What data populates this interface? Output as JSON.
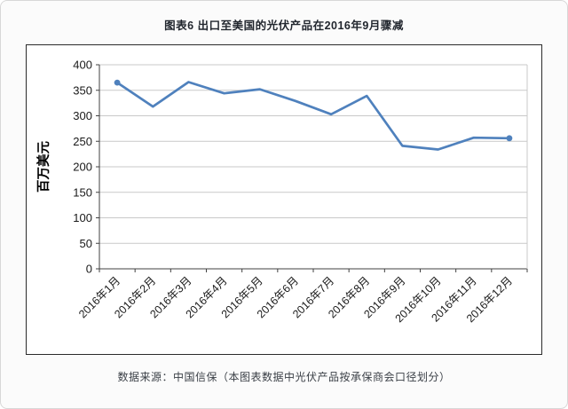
{
  "figure": {
    "caption": "数据来源：中国信保（本图表数据中光伏产品按承保商会口径划分）"
  },
  "chart_data": {
    "type": "line",
    "title": "图表6 出口至美国的光伏产品在2016年9月骤减",
    "source_note": "数据来源：中国信保（本图表数据中光伏产品按承保商会口径划分）",
    "xlabel": "",
    "ylabel": "百万美元",
    "categories": [
      "2016年1月",
      "2016年2月",
      "2016年3月",
      "2016年4月",
      "2016年5月",
      "2016年6月",
      "2016年7月",
      "2016年8月",
      "2016年9月",
      "2016年10月",
      "2016年11月",
      "2016年12月"
    ],
    "series": [
      {
        "name": "出口至美国的光伏产品",
        "values": [
          365,
          318,
          366,
          344,
          352,
          329,
          303,
          339,
          241,
          234,
          257,
          256
        ]
      }
    ],
    "ylim": [
      0,
      400
    ],
    "ytick_step": 50,
    "grid": true,
    "legend_position": "none",
    "line_color": "#4f81bd",
    "grid_color": "#c9c9c9",
    "axis_color": "#404040",
    "tick_label_color": "#1a1a1a"
  }
}
